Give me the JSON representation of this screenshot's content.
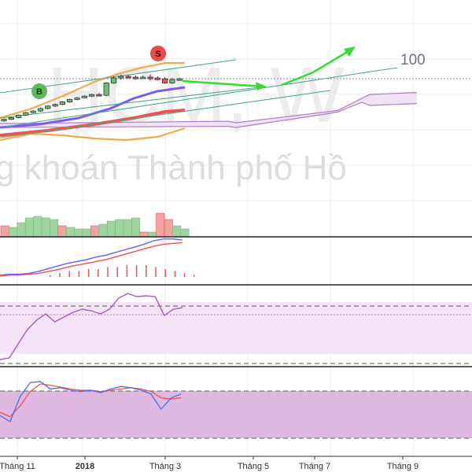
{
  "watermark": {
    "symbol": "HCM, W",
    "company": "g khoán Thành phố Hồ"
  },
  "signals": [
    {
      "label": "B",
      "type": "buy",
      "color": "#5cb85c"
    },
    {
      "label": "S",
      "type": "sell",
      "color": "#e84a4a"
    }
  ],
  "fib_label": "100",
  "colors": {
    "up": "#6fbf73",
    "down": "#ef5350",
    "bb": "#f5a94a",
    "ma_fast": "#7b5cf0",
    "ma_slow": "#ef5350",
    "cloud": "#b07cc6",
    "trend": "#4aa88c",
    "arrow": "#33dd33",
    "macd": "#6a5cf0",
    "signal_line": "#ef5350",
    "rsi": "#a75bc0",
    "stoch_k": "#4f6bf0",
    "stoch_d": "#ef5350",
    "grid": "#ececec"
  },
  "chart_data": {
    "type": "candlestick",
    "title": "",
    "x_ticks": [
      "Tháng 11",
      "2018",
      "Tháng 3",
      "Tháng 5",
      "Tháng 7",
      "Tháng 9"
    ],
    "candles": [
      {
        "o": 6,
        "c": 8,
        "h": 9,
        "l": 5
      },
      {
        "o": 8,
        "c": 10,
        "h": 11,
        "l": 7
      },
      {
        "o": 10,
        "c": 13,
        "h": 14,
        "l": 9
      },
      {
        "o": 13,
        "c": 16,
        "h": 17,
        "l": 12
      },
      {
        "o": 16,
        "c": 18,
        "h": 19,
        "l": 15
      },
      {
        "o": 18,
        "c": 21,
        "h": 22,
        "l": 17
      },
      {
        "o": 21,
        "c": 24,
        "h": 25,
        "l": 20
      },
      {
        "o": 24,
        "c": 26,
        "h": 27,
        "l": 23
      },
      {
        "o": 26,
        "c": 29,
        "h": 30,
        "l": 25
      },
      {
        "o": 29,
        "c": 32,
        "h": 33,
        "l": 28
      },
      {
        "o": 32,
        "c": 34,
        "h": 35,
        "l": 31
      },
      {
        "o": 34,
        "c": 36,
        "h": 37,
        "l": 33
      },
      {
        "o": 36,
        "c": 38,
        "h": 39,
        "l": 35
      },
      {
        "o": 38,
        "c": 37,
        "h": 40,
        "l": 36
      },
      {
        "o": 37,
        "c": 52,
        "h": 53,
        "l": 36
      },
      {
        "o": 52,
        "c": 58,
        "h": 60,
        "l": 51
      },
      {
        "o": 58,
        "c": 60,
        "h": 62,
        "l": 56
      },
      {
        "o": 60,
        "c": 59,
        "h": 62,
        "l": 57
      },
      {
        "o": 59,
        "c": 58,
        "h": 61,
        "l": 56
      },
      {
        "o": 58,
        "c": 59,
        "h": 61,
        "l": 57
      },
      {
        "o": 59,
        "c": 58,
        "h": 62,
        "l": 55
      },
      {
        "o": 58,
        "c": 57,
        "h": 60,
        "l": 55
      },
      {
        "o": 57,
        "c": 52,
        "h": 59,
        "l": 51
      },
      {
        "o": 52,
        "c": 56,
        "h": 58,
        "l": 51
      },
      {
        "o": 56,
        "c": 57,
        "h": 58,
        "l": 55
      }
    ],
    "volume": [
      {
        "v": 14,
        "up": false
      },
      {
        "v": 12,
        "up": true
      },
      {
        "v": 18,
        "up": true
      },
      {
        "v": 24,
        "up": true
      },
      {
        "v": 26,
        "up": true
      },
      {
        "v": 24,
        "up": true
      },
      {
        "v": 22,
        "up": true
      },
      {
        "v": 14,
        "up": false
      },
      {
        "v": 12,
        "up": true
      },
      {
        "v": 10,
        "up": true
      },
      {
        "v": 10,
        "up": true
      },
      {
        "v": 14,
        "up": false
      },
      {
        "v": 16,
        "up": true
      },
      {
        "v": 20,
        "up": true
      },
      {
        "v": 22,
        "up": true
      },
      {
        "v": 22,
        "up": true
      },
      {
        "v": 24,
        "up": true
      },
      {
        "v": 6,
        "up": false
      },
      {
        "v": 6,
        "up": true
      },
      {
        "v": 30,
        "up": false
      },
      {
        "v": 22,
        "up": false
      },
      {
        "v": 14,
        "up": true
      },
      {
        "v": 10,
        "up": true
      }
    ],
    "macd": {
      "macd_line": [
        2,
        3,
        3,
        4,
        6,
        9,
        12,
        15,
        17,
        19,
        22,
        24,
        27,
        30,
        33,
        36,
        40,
        42,
        42,
        41
      ],
      "signal_line": [
        1,
        2,
        2,
        3,
        4,
        6,
        8,
        11,
        13,
        15,
        17,
        19,
        22,
        25,
        28,
        31,
        34,
        36,
        37,
        38
      ],
      "histogram": [
        0,
        0,
        0,
        0,
        1,
        2,
        3,
        3,
        4,
        4,
        5,
        5,
        6,
        6,
        6,
        5,
        4,
        3,
        2,
        1
      ]
    },
    "rsi": {
      "values": [
        10,
        12,
        30,
        48,
        60,
        68,
        58,
        64,
        70,
        74,
        72,
        68,
        74,
        88,
        94,
        90,
        91,
        90,
        66,
        74,
        76
      ],
      "upper_band": 80,
      "lower_band": 20,
      "mid": 70
    },
    "stochastic": {
      "k": [
        40,
        30,
        70,
        92,
        94,
        82,
        84,
        80,
        78,
        80,
        76,
        82,
        86,
        84,
        80,
        74,
        50,
        68,
        74
      ],
      "d": [
        45,
        38,
        55,
        78,
        90,
        88,
        85,
        82,
        80,
        80,
        78,
        80,
        82,
        84,
        82,
        78,
        68,
        66,
        68
      ],
      "upper_band": 80,
      "lower_band": 20
    }
  }
}
